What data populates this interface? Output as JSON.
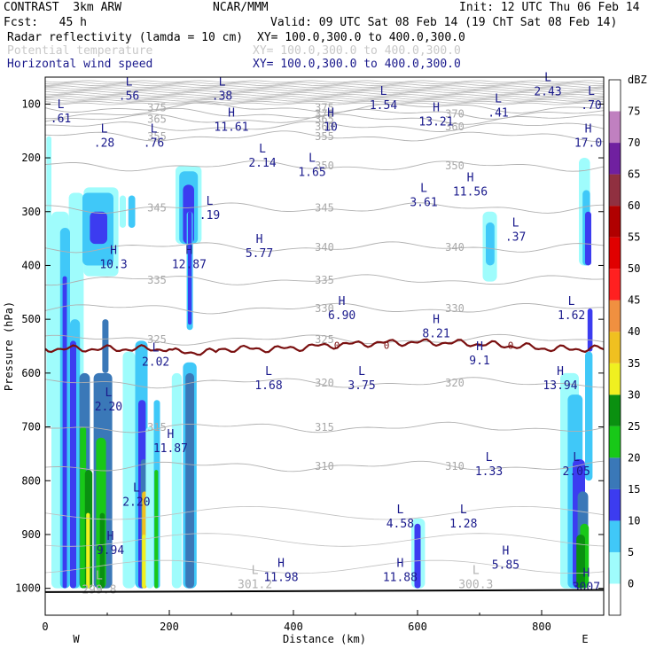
{
  "header": {
    "model": "CONTRAST  3km ARW",
    "center": "NCAR/MMM",
    "init": "Init: 12 UTC Thu 06 Feb 14",
    "fcst": "Fcst:   45 h",
    "valid": "Valid: 09 UTC Sat 08 Feb 14 (19 ChT Sat 08 Feb 14)",
    "field1": "Radar reflectivity (lamda = 10 cm)",
    "field1_xy": "XY= 100.0,300.0 to 400.0,300.0",
    "field2": "Potential temperature",
    "field2_xy": "XY= 100.0,300.0 to 400.0,300.0",
    "field3": "Horizontal wind speed",
    "field3_xy": "XY= 100.0,300.0 to 400.0,300.0"
  },
  "chart_data": {
    "type": "heatmap",
    "title": "",
    "xlabel": "Distance (km)",
    "ylabel": "Pressure (hPa)",
    "xlim": [
      0,
      900
    ],
    "ylim": [
      1050,
      50
    ],
    "x_ticks": [
      "0",
      "200",
      "400",
      "600",
      "800"
    ],
    "x_tick_values": [
      0,
      200,
      400,
      600,
      800
    ],
    "y_ticks": [
      "100",
      "200",
      "300",
      "400",
      "500",
      "600",
      "700",
      "800",
      "900",
      "1000"
    ],
    "y_tick_values": [
      100,
      200,
      300,
      400,
      500,
      600,
      700,
      800,
      900,
      1000
    ],
    "x_end_labels": [
      "W",
      "E"
    ],
    "colorbar_unit": "dBZ",
    "colorbar_levels": [
      "0",
      "5",
      "10",
      "15",
      "20",
      "25",
      "30",
      "35",
      "40",
      "45",
      "50",
      "55",
      "60",
      "65",
      "70",
      "75"
    ],
    "colorbar_colors": [
      "#ffffff",
      "#9ffcfc",
      "#40c8f8",
      "#3c3cf0",
      "#3a78b8",
      "#18c818",
      "#0a9010",
      "#f0f020",
      "#f0c020",
      "#f09040",
      "#ff2020",
      "#e00000",
      "#b00000",
      "#903040",
      "#7020a0",
      "#c080c0"
    ],
    "theta_contours": [
      {
        "label": "375",
        "p": 107
      },
      {
        "label": "370",
        "p": 118
      },
      {
        "label": "365",
        "p": 128
      },
      {
        "label": "360",
        "p": 142
      },
      {
        "label": "355",
        "p": 160
      },
      {
        "label": "350",
        "p": 215
      },
      {
        "label": "345",
        "p": 293
      },
      {
        "label": "340",
        "p": 366
      },
      {
        "label": "335",
        "p": 427
      },
      {
        "label": "330",
        "p": 480
      },
      {
        "label": "325",
        "p": 538
      },
      {
        "label": "320",
        "p": 618
      },
      {
        "label": "315",
        "p": 701
      },
      {
        "label": "310",
        "p": 773
      }
    ],
    "freezing_level_label": "0",
    "wind_labels": [
      {
        "t": "L",
        "v": ".56",
        "x": 135,
        "p": 90
      },
      {
        "t": "L",
        "v": ".38",
        "x": 285,
        "p": 90
      },
      {
        "t": "L",
        "v": ".61",
        "x": 25,
        "p": 132
      },
      {
        "t": "L",
        "v": "1.54",
        "x": 545,
        "p": 108
      },
      {
        "t": "L",
        "v": "2.43",
        "x": 810,
        "p": 82
      },
      {
        "t": "L",
        "v": ".70",
        "x": 880,
        "p": 108
      },
      {
        "t": "H",
        "v": "11.61",
        "x": 300,
        "p": 148
      },
      {
        "t": "H",
        "v": "10",
        "x": 460,
        "p": 148
      },
      {
        "t": "H",
        "v": "13.21",
        "x": 630,
        "p": 138
      },
      {
        "t": "L",
        "v": ".41",
        "x": 730,
        "p": 122
      },
      {
        "t": "L",
        "v": ".28",
        "x": 95,
        "p": 178
      },
      {
        "t": "L",
        "v": ".76",
        "x": 175,
        "p": 178
      },
      {
        "t": "H",
        "v": "17.0",
        "x": 875,
        "p": 178
      },
      {
        "t": "L",
        "v": "2.14",
        "x": 350,
        "p": 215
      },
      {
        "t": "L",
        "v": "1.65",
        "x": 430,
        "p": 232
      },
      {
        "t": "L",
        "v": "3.61",
        "x": 610,
        "p": 288
      },
      {
        "t": "H",
        "v": "11.56",
        "x": 685,
        "p": 268
      },
      {
        "t": "L",
        "v": ".19",
        "x": 265,
        "p": 312
      },
      {
        "t": "L",
        "v": ".37",
        "x": 758,
        "p": 352
      },
      {
        "t": "H",
        "v": "5.77",
        "x": 345,
        "p": 383
      },
      {
        "t": "H",
        "v": "10.3",
        "x": 110,
        "p": 403
      },
      {
        "t": "H",
        "v": "12.87",
        "x": 232,
        "p": 403
      },
      {
        "t": "H",
        "v": "6.90",
        "x": 478,
        "p": 498
      },
      {
        "t": "L",
        "v": "1.62",
        "x": 848,
        "p": 498
      },
      {
        "t": "H",
        "v": "8.21",
        "x": 630,
        "p": 532
      },
      {
        "t": "H",
        "v": "9.1",
        "x": 700,
        "p": 582
      },
      {
        "t": "L",
        "v": "2.02",
        "x": 178,
        "p": 585
      },
      {
        "t": "L",
        "v": "1.68",
        "x": 360,
        "p": 628
      },
      {
        "t": "L",
        "v": "3.75",
        "x": 510,
        "p": 628
      },
      {
        "t": "H",
        "v": "13.94",
        "x": 830,
        "p": 628
      },
      {
        "t": "L",
        "v": "2.20",
        "x": 102,
        "p": 668
      },
      {
        "t": "H",
        "v": "11.87",
        "x": 202,
        "p": 745
      },
      {
        "t": "L",
        "v": "1.33",
        "x": 715,
        "p": 788
      },
      {
        "t": "L",
        "v": "2.05",
        "x": 856,
        "p": 788
      },
      {
        "t": "L",
        "v": "2.20",
        "x": 147,
        "p": 845
      },
      {
        "t": "L",
        "v": "4.58",
        "x": 572,
        "p": 885
      },
      {
        "t": "L",
        "v": "1.28",
        "x": 674,
        "p": 885
      },
      {
        "t": "H",
        "v": "9.94",
        "x": 105,
        "p": 935
      },
      {
        "t": "H",
        "v": "11.98",
        "x": 380,
        "p": 985
      },
      {
        "t": "H",
        "v": "11.88",
        "x": 572,
        "p": 985
      },
      {
        "t": "H",
        "v": "5.85",
        "x": 742,
        "p": 962
      },
      {
        "t": "H",
        "v": "3007",
        "x": 872,
        "p": 1003
      }
    ],
    "theta_extrema": [
      {
        "t": "L",
        "v": "299.8",
        "x": 87,
        "p": 1010
      },
      {
        "t": "L",
        "v": "301.2",
        "x": 338,
        "p": 1000
      },
      {
        "t": "L",
        "v": "300.3",
        "x": 694,
        "p": 1000
      }
    ]
  }
}
